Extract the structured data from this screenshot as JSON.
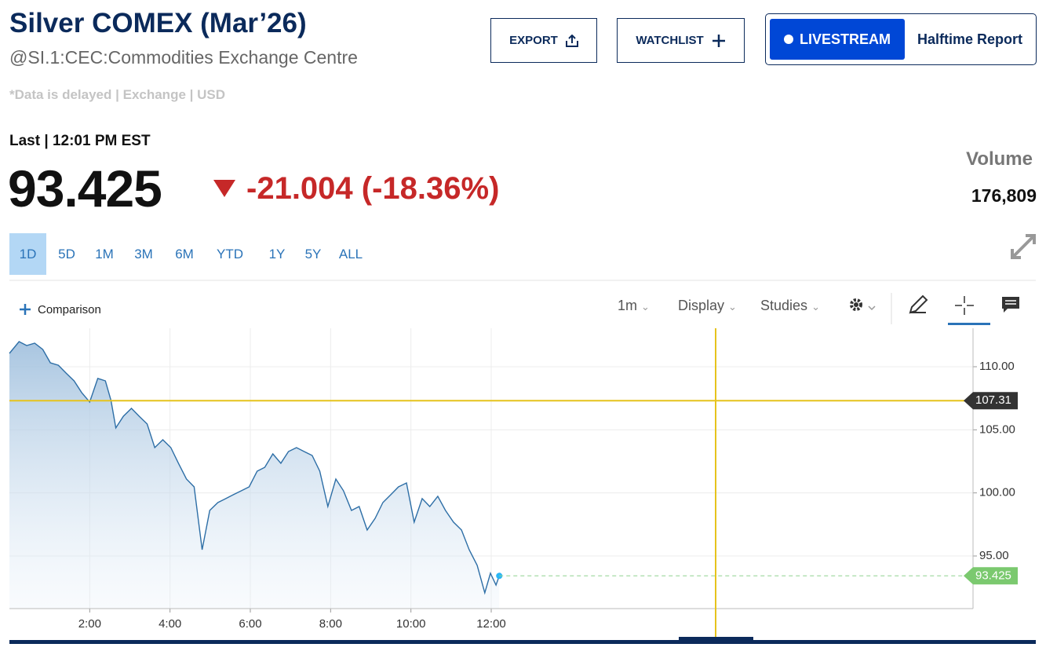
{
  "header": {
    "title": "Silver COMEX (Mar’26)",
    "symbol": "@SI.1:CEC:Commodities Exchange Centre",
    "note": "*Data is delayed | Exchange | USD",
    "last_label": "Last | 12:01 PM EST",
    "change": "-21.004 (-18.36%)",
    "volume_label": "Volume",
    "volume": "176,809"
  },
  "buttons": {
    "export": "EXPORT",
    "watchlist": "WATCHLIST",
    "livestream": "LIVESTREAM",
    "halftime": "Halftime Report"
  },
  "ranges": [
    "1D",
    "5D",
    "1M",
    "3M",
    "6M",
    "YTD",
    "1Y",
    "5Y",
    "ALL"
  ],
  "toolbar": {
    "comparison": "Comparison",
    "interval": "1m",
    "display": "Display",
    "studies": "Studies"
  },
  "chart_data": {
    "type": "line",
    "x": [
      0,
      0.24,
      0.43,
      0.63,
      0.83,
      1.02,
      1.22,
      1.41,
      1.61,
      1.8,
      2.0,
      2.2,
      2.39,
      2.53,
      2.65,
      2.84,
      3.04,
      3.23,
      3.43,
      3.62,
      3.82,
      4.02,
      4.21,
      4.41,
      4.6,
      4.8,
      4.99,
      5.19,
      5.39,
      5.58,
      5.78,
      5.97,
      6.17,
      6.36,
      6.56,
      6.76,
      6.95,
      7.15,
      7.34,
      7.54,
      7.73,
      7.93,
      8.13,
      8.32,
      8.52,
      8.71,
      8.91,
      9.11,
      9.3,
      9.5,
      9.69,
      9.89,
      10.08,
      10.28,
      10.47,
      10.67,
      10.86,
      11.06,
      11.26,
      11.45,
      11.65,
      11.84,
      11.98,
      12.12,
      12.2
    ],
    "series": [
      {
        "color": "#2d6ea6",
        "values": [
          111.06,
          111.99,
          111.68,
          111.87,
          111.37,
          110.31,
          110.12,
          109.5,
          108.88,
          107.95,
          107.2,
          109.07,
          108.88,
          107.32,
          105.15,
          106.08,
          106.7,
          106.08,
          105.46,
          103.59,
          104.21,
          103.59,
          102.35,
          101.1,
          100.48,
          95.5,
          98.61,
          99.23,
          99.55,
          99.86,
          100.17,
          100.48,
          101.72,
          102.03,
          103.09,
          102.35,
          103.28,
          103.59,
          103.28,
          102.97,
          101.72,
          98.92,
          101.1,
          100.17,
          98.61,
          98.92,
          97.06,
          97.99,
          99.23,
          99.86,
          100.48,
          100.79,
          97.68,
          99.55,
          98.92,
          99.73,
          98.61,
          97.68,
          97.06,
          95.5,
          94.26,
          92.08,
          93.63,
          92.7,
          93.425
        ]
      }
    ],
    "xlim": [
      0,
      24
    ],
    "ylim": [
      90.83,
      113.05
    ],
    "xticks": [
      {
        "value": 2,
        "label": "2:00"
      },
      {
        "value": 4,
        "label": "4:00"
      },
      {
        "value": 6,
        "label": "6:00"
      },
      {
        "value": 8,
        "label": "8:00"
      },
      {
        "value": 10,
        "label": "10:00"
      },
      {
        "value": 12,
        "label": "12:00"
      }
    ],
    "yticks": [
      {
        "value": 95,
        "label": "95.00"
      },
      {
        "value": 100,
        "label": "100.00"
      },
      {
        "value": 105,
        "label": "105.00"
      },
      {
        "value": 110,
        "label": "110.00"
      }
    ],
    "grid": true,
    "crosshair_y": 107.31,
    "last_value": 93.425
  }
}
